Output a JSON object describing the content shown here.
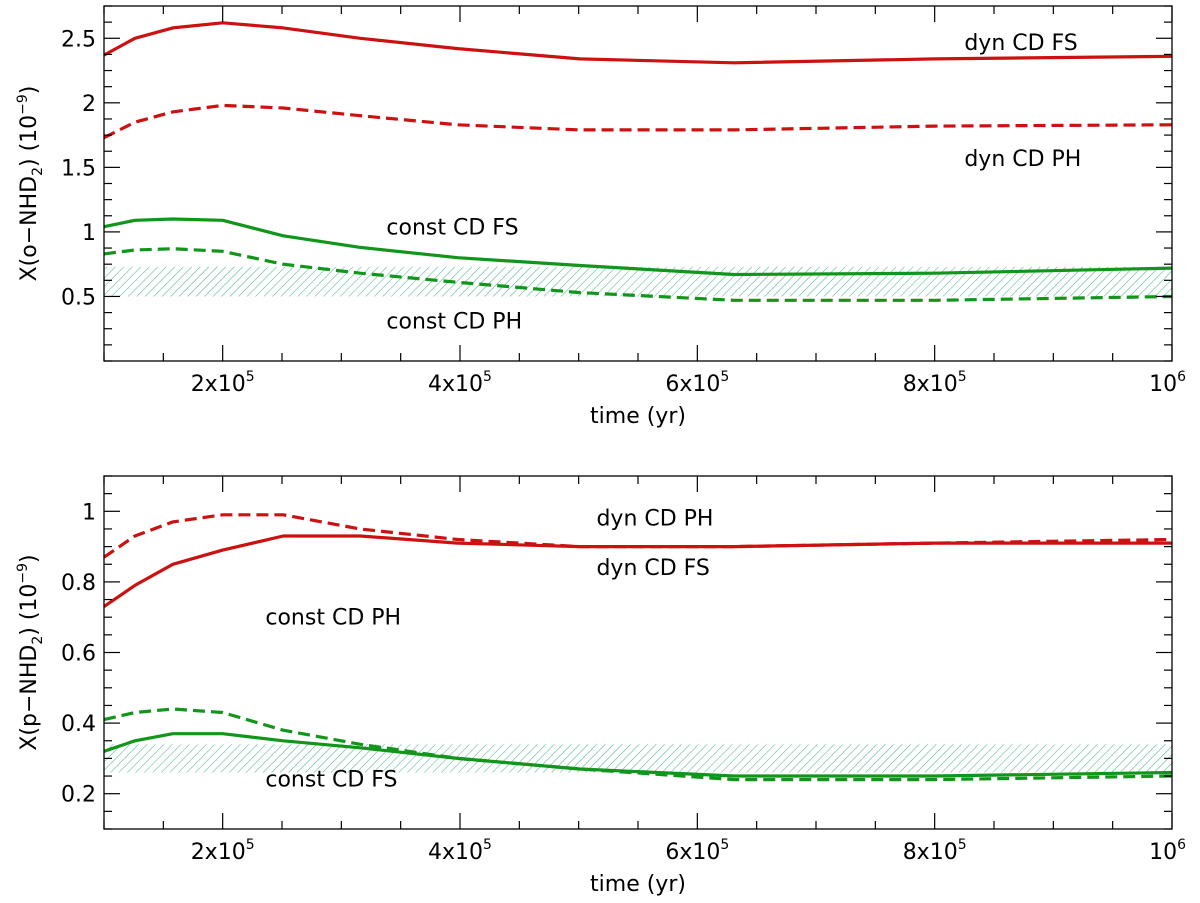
{
  "colors": {
    "dyn": "#cc1111",
    "const": "#11961b",
    "hatch": "#4fb58f"
  },
  "chart_data": [
    {
      "type": "line",
      "title": "",
      "xlabel": "time (yr)",
      "ylabel": {
        "prefix": "X(o−NHD",
        "sub": "2",
        "mid": ")  (10",
        "sup": "−9",
        "suffix": ")"
      },
      "xlim": [
        100000,
        1000000
      ],
      "ylim": [
        0,
        2.75
      ],
      "xticks": [
        {
          "value": 200000,
          "mant": "2x10",
          "exp": "5"
        },
        {
          "value": 400000,
          "mant": "4x10",
          "exp": "5"
        },
        {
          "value": 600000,
          "mant": "6x10",
          "exp": "5"
        },
        {
          "value": 800000,
          "mant": "8x10",
          "exp": "5"
        },
        {
          "value": 1000000,
          "mant": "10",
          "exp": "6"
        }
      ],
      "yticks": [
        {
          "value": 0.5,
          "label": "0.5"
        },
        {
          "value": 1.0,
          "label": "1"
        },
        {
          "value": 1.5,
          "label": "1.5"
        },
        {
          "value": 2.0,
          "label": "2"
        },
        {
          "value": 2.5,
          "label": "2.5"
        }
      ],
      "band": {
        "low": 0.5,
        "high": 0.73
      },
      "series": [
        {
          "name": "dyn CD FS",
          "style": "solid",
          "color": "dyn",
          "x": [
            100000,
            126000,
            158000,
            200000,
            251000,
            316000,
            398000,
            501000,
            631000,
            800000,
            1000000
          ],
          "y": [
            2.37,
            2.5,
            2.58,
            2.62,
            2.58,
            2.5,
            2.42,
            2.34,
            2.31,
            2.34,
            2.36
          ]
        },
        {
          "name": "dyn CD PH",
          "style": "dashed",
          "color": "dyn",
          "x": [
            100000,
            126000,
            158000,
            200000,
            251000,
            316000,
            398000,
            501000,
            631000,
            800000,
            1000000
          ],
          "y": [
            1.73,
            1.85,
            1.93,
            1.98,
            1.96,
            1.9,
            1.83,
            1.79,
            1.79,
            1.82,
            1.83
          ]
        },
        {
          "name": "const CD FS",
          "style": "solid",
          "color": "const",
          "x": [
            100000,
            126000,
            158000,
            200000,
            251000,
            316000,
            398000,
            501000,
            631000,
            800000,
            1000000
          ],
          "y": [
            1.04,
            1.09,
            1.1,
            1.09,
            0.97,
            0.88,
            0.8,
            0.74,
            0.67,
            0.68,
            0.72
          ]
        },
        {
          "name": "const CD PH",
          "style": "dashed",
          "color": "const",
          "x": [
            100000,
            126000,
            158000,
            200000,
            251000,
            316000,
            398000,
            501000,
            631000,
            800000,
            1000000
          ],
          "y": [
            0.83,
            0.86,
            0.87,
            0.85,
            0.75,
            0.68,
            0.61,
            0.53,
            0.47,
            0.47,
            0.5
          ]
        }
      ],
      "annotations": [
        {
          "text": "dyn CD FS",
          "x": 825000,
          "y": 2.41
        },
        {
          "text": "dyn CD PH",
          "x": 825000,
          "y": 1.51
        },
        {
          "text": "const CD FS",
          "x": 338000,
          "y": 0.98
        },
        {
          "text": "const CD PH",
          "x": 338000,
          "y": 0.25
        }
      ]
    },
    {
      "type": "line",
      "title": "",
      "xlabel": "time (yr)",
      "ylabel": {
        "prefix": "X(p−NHD",
        "sub": "2",
        "mid": ")  (10",
        "sup": "−9",
        "suffix": ")"
      },
      "xlim": [
        100000,
        1000000
      ],
      "ylim": [
        0.1,
        1.1
      ],
      "xticks": [
        {
          "value": 200000,
          "mant": "2x10",
          "exp": "5"
        },
        {
          "value": 400000,
          "mant": "4x10",
          "exp": "5"
        },
        {
          "value": 600000,
          "mant": "6x10",
          "exp": "5"
        },
        {
          "value": 800000,
          "mant": "8x10",
          "exp": "5"
        },
        {
          "value": 1000000,
          "mant": "10",
          "exp": "6"
        }
      ],
      "yticks": [
        {
          "value": 0.2,
          "label": "0.2"
        },
        {
          "value": 0.4,
          "label": "0.4"
        },
        {
          "value": 0.6,
          "label": "0.6"
        },
        {
          "value": 0.8,
          "label": "0.8"
        },
        {
          "value": 1.0,
          "label": "1"
        }
      ],
      "band": {
        "low": 0.26,
        "high": 0.34
      },
      "series": [
        {
          "name": "dyn CD PH",
          "style": "dashed",
          "color": "dyn",
          "x": [
            100000,
            126000,
            158000,
            200000,
            251000,
            316000,
            398000,
            501000,
            631000,
            800000,
            1000000
          ],
          "y": [
            0.87,
            0.93,
            0.97,
            0.99,
            0.99,
            0.95,
            0.92,
            0.9,
            0.9,
            0.91,
            0.92
          ]
        },
        {
          "name": "dyn CD FS",
          "style": "solid",
          "color": "dyn",
          "x": [
            100000,
            126000,
            158000,
            200000,
            251000,
            316000,
            398000,
            501000,
            631000,
            800000,
            1000000
          ],
          "y": [
            0.73,
            0.79,
            0.85,
            0.89,
            0.93,
            0.93,
            0.91,
            0.9,
            0.9,
            0.91,
            0.91
          ]
        },
        {
          "name": "const CD PH",
          "style": "dashed",
          "color": "const",
          "x": [
            100000,
            126000,
            158000,
            200000,
            251000,
            316000,
            398000,
            501000,
            631000,
            800000,
            1000000
          ],
          "y": [
            0.41,
            0.43,
            0.44,
            0.43,
            0.38,
            0.34,
            0.3,
            0.27,
            0.24,
            0.24,
            0.25
          ]
        },
        {
          "name": "const CD FS",
          "style": "solid",
          "color": "const",
          "x": [
            100000,
            126000,
            158000,
            200000,
            251000,
            316000,
            398000,
            501000,
            631000,
            800000,
            1000000
          ],
          "y": [
            0.32,
            0.35,
            0.37,
            0.37,
            0.35,
            0.33,
            0.3,
            0.27,
            0.25,
            0.25,
            0.26
          ]
        }
      ],
      "annotations": [
        {
          "text": "dyn CD PH",
          "x": 515000,
          "y": 0.96
        },
        {
          "text": "dyn CD FS",
          "x": 515000,
          "y": 0.82
        },
        {
          "text": "const CD PH",
          "x": 236000,
          "y": 0.68
        },
        {
          "text": "const CD FS",
          "x": 236000,
          "y": 0.22
        }
      ]
    }
  ]
}
